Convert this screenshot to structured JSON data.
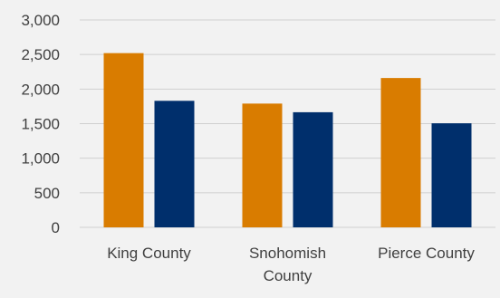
{
  "chart_data": {
    "type": "bar",
    "categories": [
      [
        "King County"
      ],
      [
        "Snohomish",
        "County"
      ],
      [
        "Pierce County"
      ]
    ],
    "series": [
      {
        "values": [
          2520,
          1790,
          2160
        ],
        "color": "#d97c00"
      },
      {
        "values": [
          1830,
          1665,
          1505
        ],
        "color": "#002f6c"
      }
    ],
    "y_ticks": [
      "0",
      "500",
      "1,000",
      "1,500",
      "2,000",
      "2,500",
      "3,000"
    ],
    "ylim": [
      0,
      3000
    ],
    "grid": true,
    "legend": "none"
  }
}
